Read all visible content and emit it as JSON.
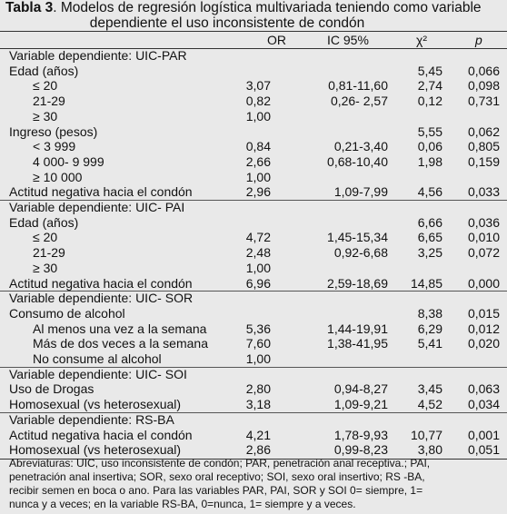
{
  "title": {
    "label": "Tabla 3",
    "text_line1": ". Modelos de regresión logística multivariada teniendo como variable",
    "text_line2": "dependiente el uso inconsistente de condón"
  },
  "columns": [
    "OR",
    "IC 95%",
    "χ²",
    "p"
  ],
  "rows": [
    {
      "label": "Variable dependiente: UIC-PAR",
      "indent": 0,
      "or": "",
      "ic": "",
      "chi": "",
      "p": ""
    },
    {
      "label": "Edad (años)",
      "indent": 0,
      "or": "",
      "ic": "",
      "chi": "5,45",
      "p": "0,066"
    },
    {
      "label": "≤ 20",
      "indent": 1,
      "or": "3,07",
      "ic": "0,81-11,60",
      "chi": "2,74",
      "p": "0,098"
    },
    {
      "label": "21-29",
      "indent": 1,
      "or": "0,82",
      "ic": "0,26- 2,57",
      "chi": "0,12",
      "p": "0,731"
    },
    {
      "label": "≥ 30",
      "indent": 1,
      "or": "1,00",
      "ic": "",
      "chi": "",
      "p": ""
    },
    {
      "label": "Ingreso (pesos)",
      "indent": 0,
      "or": "",
      "ic": "",
      "chi": "5,55",
      "p": "0,062"
    },
    {
      "label": "< 3 999",
      "indent": 1,
      "or": "0,84",
      "ic": "0,21-3,40",
      "chi": "0,06",
      "p": "0,805"
    },
    {
      "label": "4 000- 9 999",
      "indent": 1,
      "or": "2,66",
      "ic": "0,68-10,40",
      "chi": "1,98",
      "p": "0,159"
    },
    {
      "label": "≥ 10 000",
      "indent": 1,
      "or": "1,00",
      "ic": "",
      "chi": "",
      "p": ""
    },
    {
      "label": "Actitud negativa hacia el condón",
      "indent": 0,
      "or": "2,96",
      "ic": "1,09-7,99",
      "chi": "4,56",
      "p": "0,033"
    },
    {
      "label": "Variable dependiente: UIC- PAI",
      "indent": 0,
      "or": "",
      "ic": "",
      "chi": "",
      "p": ""
    },
    {
      "label": "Edad (años)",
      "indent": 0,
      "or": "",
      "ic": "",
      "chi": "6,66",
      "p": "0,036"
    },
    {
      "label": "≤ 20",
      "indent": 1,
      "or": "4,72",
      "ic": "1,45-15,34",
      "chi": "6,65",
      "p": "0,010"
    },
    {
      "label": "21-29",
      "indent": 1,
      "or": "2,48",
      "ic": "0,92-6,68",
      "chi": "3,25",
      "p": "0,072"
    },
    {
      "label": "≥ 30",
      "indent": 1,
      "or": "1,00",
      "ic": "",
      "chi": "",
      "p": ""
    },
    {
      "label": "Actitud negativa hacia el condón",
      "indent": 0,
      "or": "6,96",
      "ic": "2,59-18,69",
      "chi": "14,85",
      "p": "0,000"
    },
    {
      "label": "Variable dependiente: UIC- SOR",
      "indent": 0,
      "or": "",
      "ic": "",
      "chi": "",
      "p": ""
    },
    {
      "label": "Consumo de alcohol",
      "indent": 0,
      "or": "",
      "ic": "",
      "chi": "8,38",
      "p": "0,015"
    },
    {
      "label": "Al menos una vez a la semana",
      "indent": 2,
      "or": "5,36",
      "ic": "1,44-19,91",
      "chi": "6,29",
      "p": "0,012"
    },
    {
      "label": "Más de dos veces a la semana",
      "indent": 2,
      "or": "7,60",
      "ic": "1,38-41,95",
      "chi": "5,41",
      "p": "0,020"
    },
    {
      "label": "No consume al alcohol",
      "indent": 2,
      "or": "1,00",
      "ic": "",
      "chi": "",
      "p": ""
    },
    {
      "label": "Variable dependiente: UIC- SOI",
      "indent": 0,
      "or": "",
      "ic": "",
      "chi": "",
      "p": ""
    },
    {
      "label": "Uso de Drogas",
      "indent": 0,
      "or": "2,80",
      "ic": "0,94-8,27",
      "chi": "3,45",
      "p": "0,063"
    },
    {
      "label": "Homosexual (vs heterosexual)",
      "indent": 0,
      "or": "3,18",
      "ic": "1,09-9,21",
      "chi": "4,52",
      "p": "0,034"
    },
    {
      "label": "Variable dependiente: RS-BA",
      "indent": 0,
      "or": "",
      "ic": "",
      "chi": "",
      "p": ""
    },
    {
      "label": "Actitud negativa hacia el condón",
      "indent": 0,
      "or": "4,21",
      "ic": "1,78-9,93",
      "chi": "10,77",
      "p": "0,001"
    },
    {
      "label": "Homosexual (vs heterosexual)",
      "indent": 0,
      "or": "2,86",
      "ic": "0,99-8,23",
      "chi": "3,80",
      "p": "0,051"
    }
  ],
  "footnote": [
    "Abreviaturas: UIC, uso inconsistente de condón; PAR, penetración anal receptiva.; PAI,",
    "penetración anal insertiva; SOR, sexo oral receptivo; SOI, sexo oral insertivo; RS      -BA,",
    "recibir semen en boca o ano. Para las variables     PAR, PAI, SOR y SOI 0= siempre, 1=",
    "nunca y a veces; en la variable RS-BA, 0=nunca, 1= siempre y a veces."
  ]
}
